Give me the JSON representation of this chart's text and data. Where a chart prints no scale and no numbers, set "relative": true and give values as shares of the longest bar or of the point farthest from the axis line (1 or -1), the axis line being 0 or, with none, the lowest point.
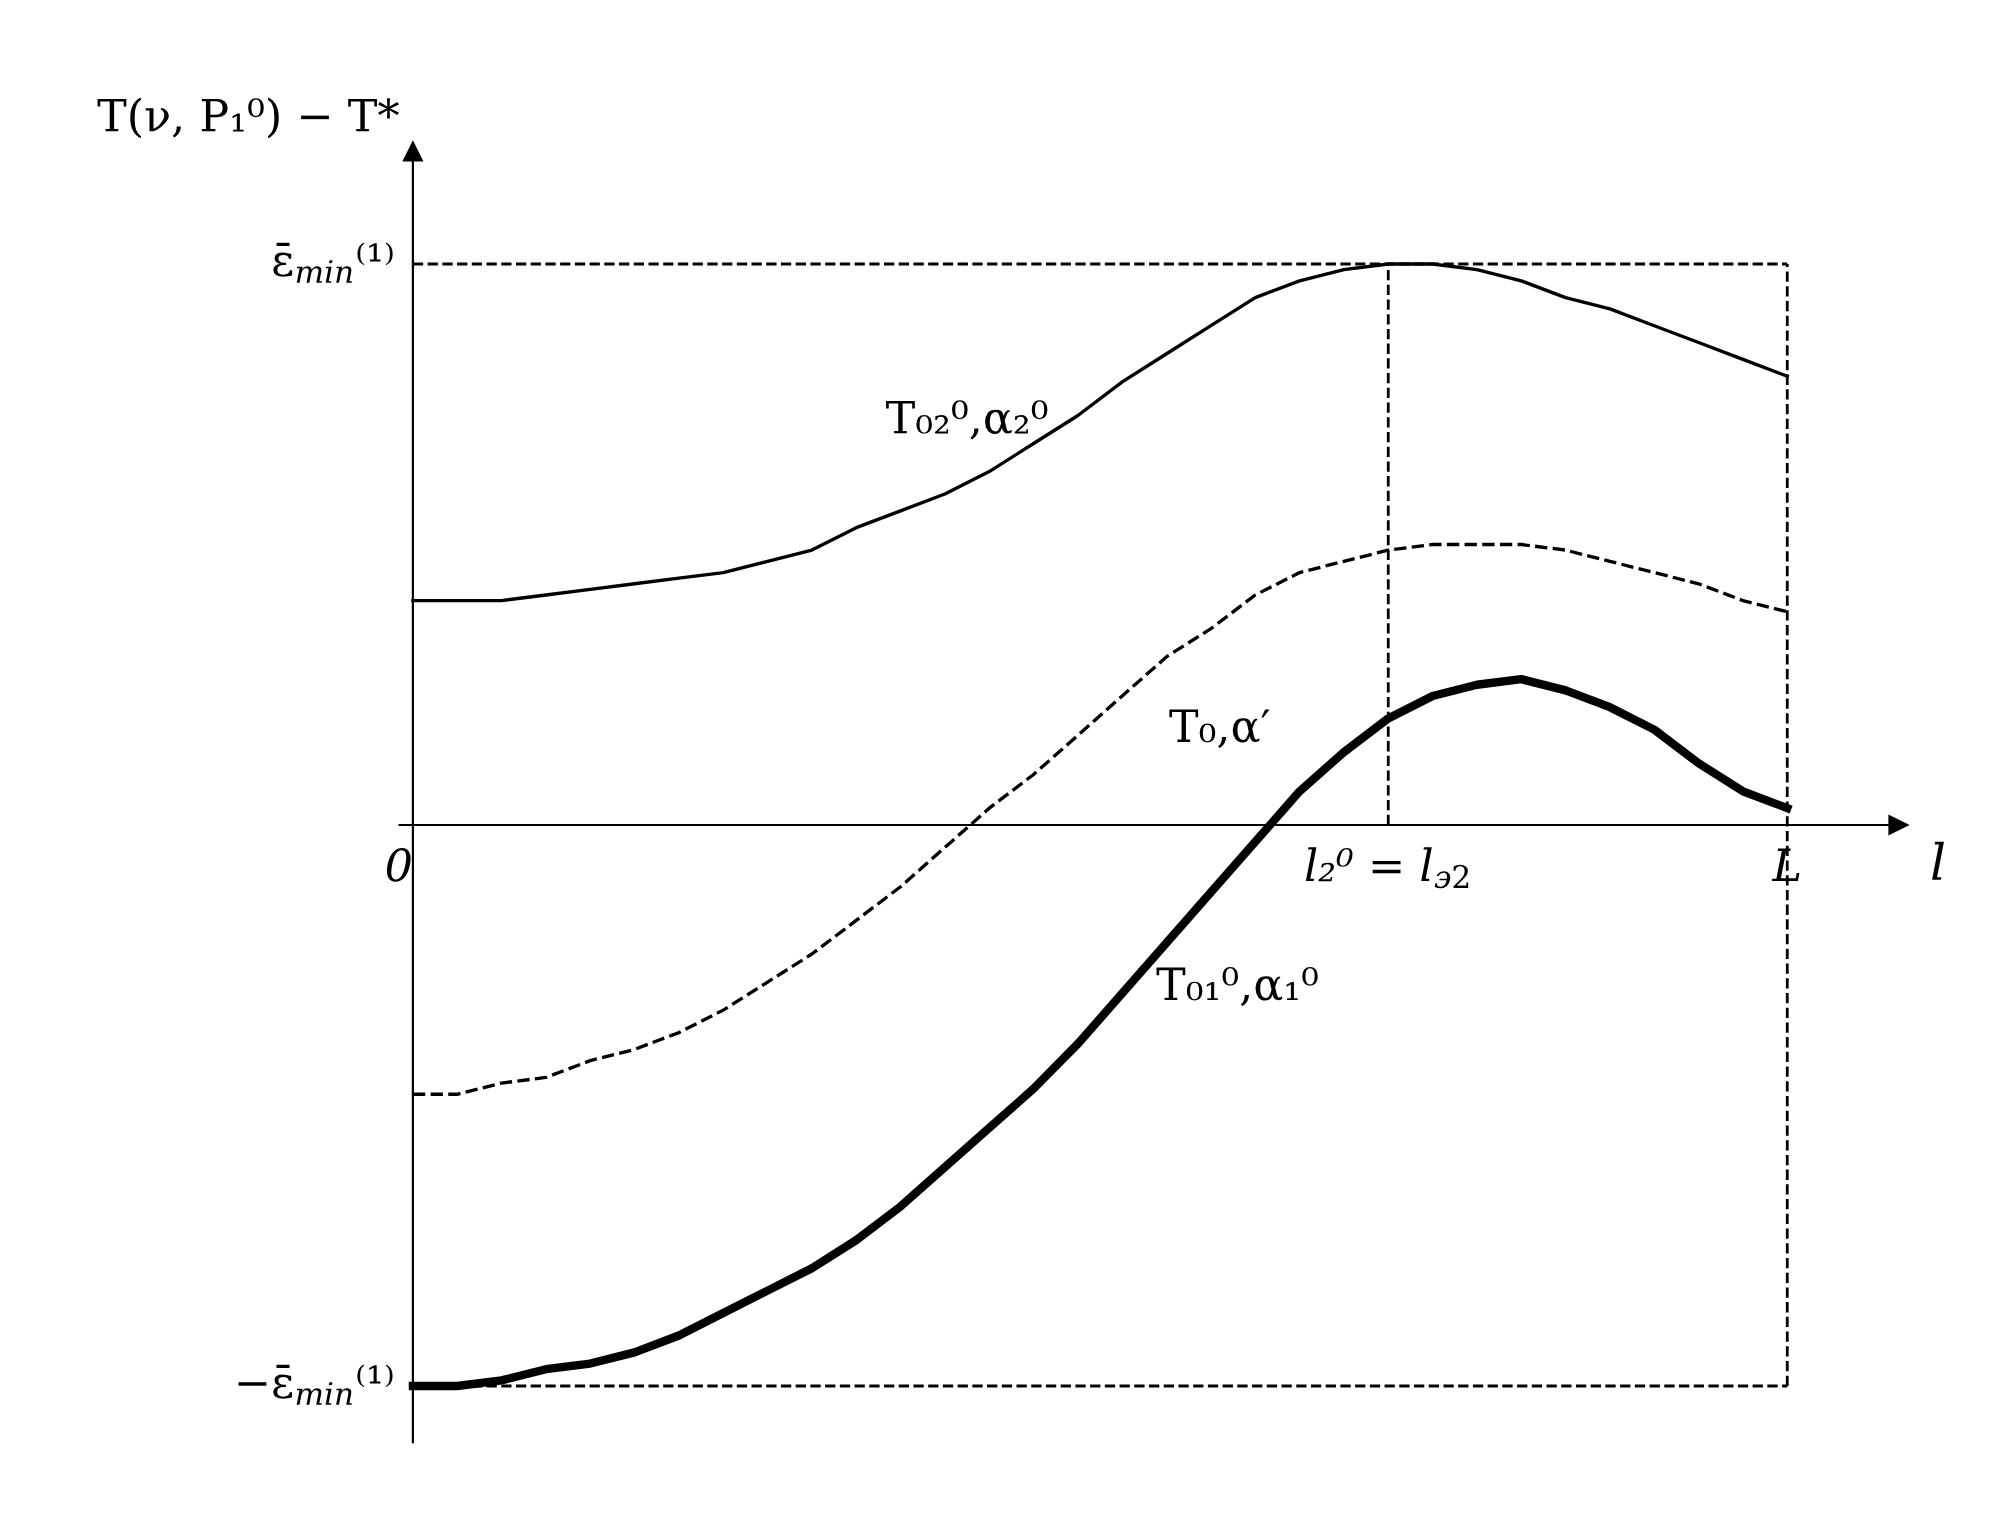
{
  "chart_data": {
    "type": "line",
    "relative": true,
    "legend": false,
    "grid": false,
    "marker": "none",
    "xlabel": "l",
    "ylabel": "T(ν, P₁⁰) − T*",
    "categories": [
      "0",
      null,
      null,
      null,
      null,
      null,
      null,
      null,
      null,
      null,
      null,
      null,
      null,
      null,
      null,
      null,
      null,
      null,
      null,
      null,
      null,
      null,
      "l₂⁰ = l$_{э2}$",
      null,
      null,
      null,
      null,
      null,
      null,
      null,
      null,
      "L"
    ],
    "series": [
      {
        "name": "T₀₂⁰,α₂⁰",
        "color": "#000000",
        "line_style": "solid",
        "values": [
          0.4,
          0.4,
          0.4,
          0.41,
          0.42,
          0.43,
          0.44,
          0.45,
          0.47,
          0.49,
          0.53,
          0.56,
          0.59,
          0.63,
          0.68,
          0.73,
          0.79,
          0.84,
          0.89,
          0.94,
          0.97,
          0.99,
          1.0,
          1.0,
          0.99,
          0.97,
          0.94,
          0.92,
          0.89,
          0.86,
          0.83,
          0.8
        ]
      },
      {
        "name": "T₀,α′",
        "color": "#000000",
        "line_style": "dashed",
        "values": [
          -0.48,
          -0.48,
          -0.46,
          -0.45,
          -0.42,
          -0.4,
          -0.37,
          -0.33,
          -0.28,
          -0.23,
          -0.17,
          -0.11,
          -0.04,
          0.03,
          0.09,
          0.16,
          0.23,
          0.3,
          0.35,
          0.41,
          0.45,
          0.47,
          0.49,
          0.5,
          0.5,
          0.5,
          0.49,
          0.47,
          0.45,
          0.43,
          0.4,
          0.38
        ]
      },
      {
        "name": "T₀₁⁰,α₁⁰",
        "color": "#000000",
        "line_style": "solid",
        "values": [
          -1.0,
          -1.0,
          -0.99,
          -0.97,
          -0.96,
          -0.94,
          -0.91,
          -0.87,
          -0.83,
          -0.79,
          -0.74,
          -0.68,
          -0.61,
          -0.54,
          -0.47,
          -0.39,
          -0.3,
          -0.21,
          -0.12,
          -0.03,
          0.06,
          0.13,
          0.19,
          0.23,
          0.25,
          0.26,
          0.24,
          0.21,
          0.17,
          0.11,
          0.06,
          0.03
        ]
      }
    ],
    "ref_lines": [
      {
        "axis": "y",
        "value": 1,
        "label": "ε̄$_{min}$⁽¹⁾",
        "color": "#000000",
        "line_style": "dashed"
      },
      {
        "axis": "y",
        "value": -1,
        "label": "−ε̄$_{min}$⁽¹⁾",
        "color": "#000000",
        "line_style": "dashed"
      },
      {
        "axis": "x",
        "value": "l₂⁰ = l$_{э2}$",
        "color": "#000000",
        "line_style": "dashed"
      },
      {
        "axis": "x",
        "value": "L",
        "color": "#000000",
        "line_style": "dashed"
      }
    ]
  }
}
